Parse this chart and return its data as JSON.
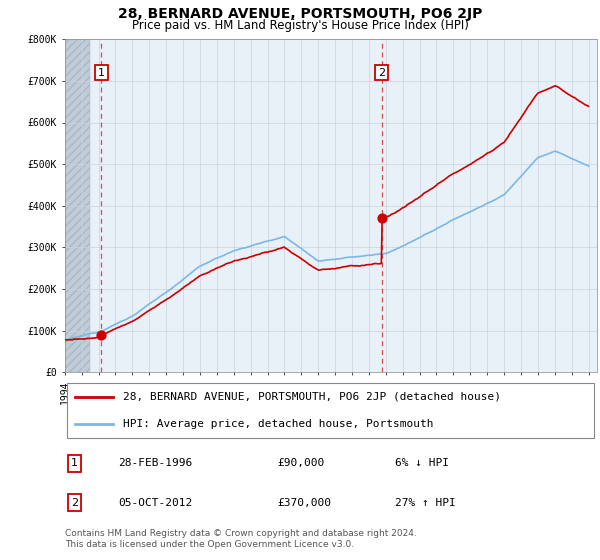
{
  "title": "28, BERNARD AVENUE, PORTSMOUTH, PO6 2JP",
  "subtitle": "Price paid vs. HM Land Registry's House Price Index (HPI)",
  "ylim": [
    0,
    800000
  ],
  "yticks": [
    0,
    100000,
    200000,
    300000,
    400000,
    500000,
    600000,
    700000,
    800000
  ],
  "ytick_labels": [
    "£0",
    "£100K",
    "£200K",
    "£300K",
    "£400K",
    "£500K",
    "£600K",
    "£700K",
    "£800K"
  ],
  "sale1_date": 1996.16,
  "sale1_price": 90000,
  "sale1_label": "1",
  "sale2_date": 2012.75,
  "sale2_price": 370000,
  "sale2_label": "2",
  "hpi_line_color": "#7BB8E8",
  "property_line_color": "#CC0000",
  "vline_color": "#CC3333",
  "marker_color": "#CC0000",
  "plot_bg_color": "#E8F0F8",
  "hatch_color": "#C0CDD8",
  "grid_color": "#C8D4E0",
  "legend_label_property": "28, BERNARD AVENUE, PORTSMOUTH, PO6 2JP (detached house)",
  "legend_label_hpi": "HPI: Average price, detached house, Portsmouth",
  "annotation1_date": "28-FEB-1996",
  "annotation1_price": "£90,000",
  "annotation1_hpi": "6% ↓ HPI",
  "annotation2_date": "05-OCT-2012",
  "annotation2_price": "£370,000",
  "annotation2_hpi": "27% ↑ HPI",
  "footer": "Contains HM Land Registry data © Crown copyright and database right 2024.\nThis data is licensed under the Open Government Licence v3.0.",
  "title_fontsize": 10,
  "subtitle_fontsize": 8.5,
  "tick_fontsize": 7,
  "legend_fontsize": 8,
  "ann_fontsize": 8
}
